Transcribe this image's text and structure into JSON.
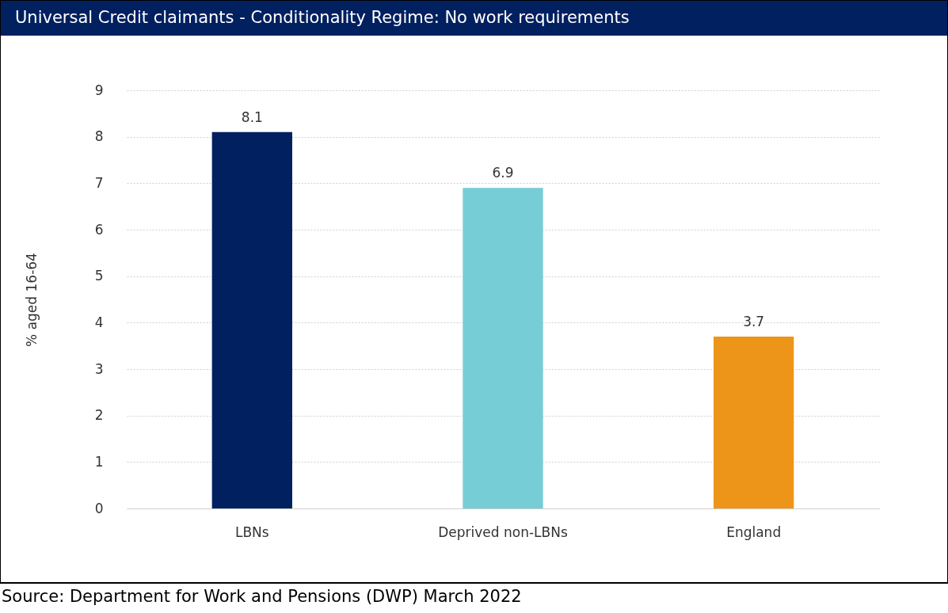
{
  "chart_data": {
    "type": "bar",
    "title": "Universal Credit claimants - Conditionality Regime: No work requirements",
    "ylabel": "% aged 16-64",
    "categories": [
      "LBNs",
      "Deprived non-LBNs",
      "England"
    ],
    "values": [
      8.1,
      6.9,
      3.7
    ],
    "colors": [
      "#002060",
      "#76cdd5",
      "#ed9519"
    ],
    "ylim": [
      0,
      9
    ],
    "yticks": [
      0,
      1,
      2,
      3,
      4,
      5,
      6,
      7,
      8,
      9
    ],
    "grid": "y",
    "data_labels": true,
    "annotations": [
      "Source: Department for Work and Pensions (DWP) March 2022"
    ]
  }
}
